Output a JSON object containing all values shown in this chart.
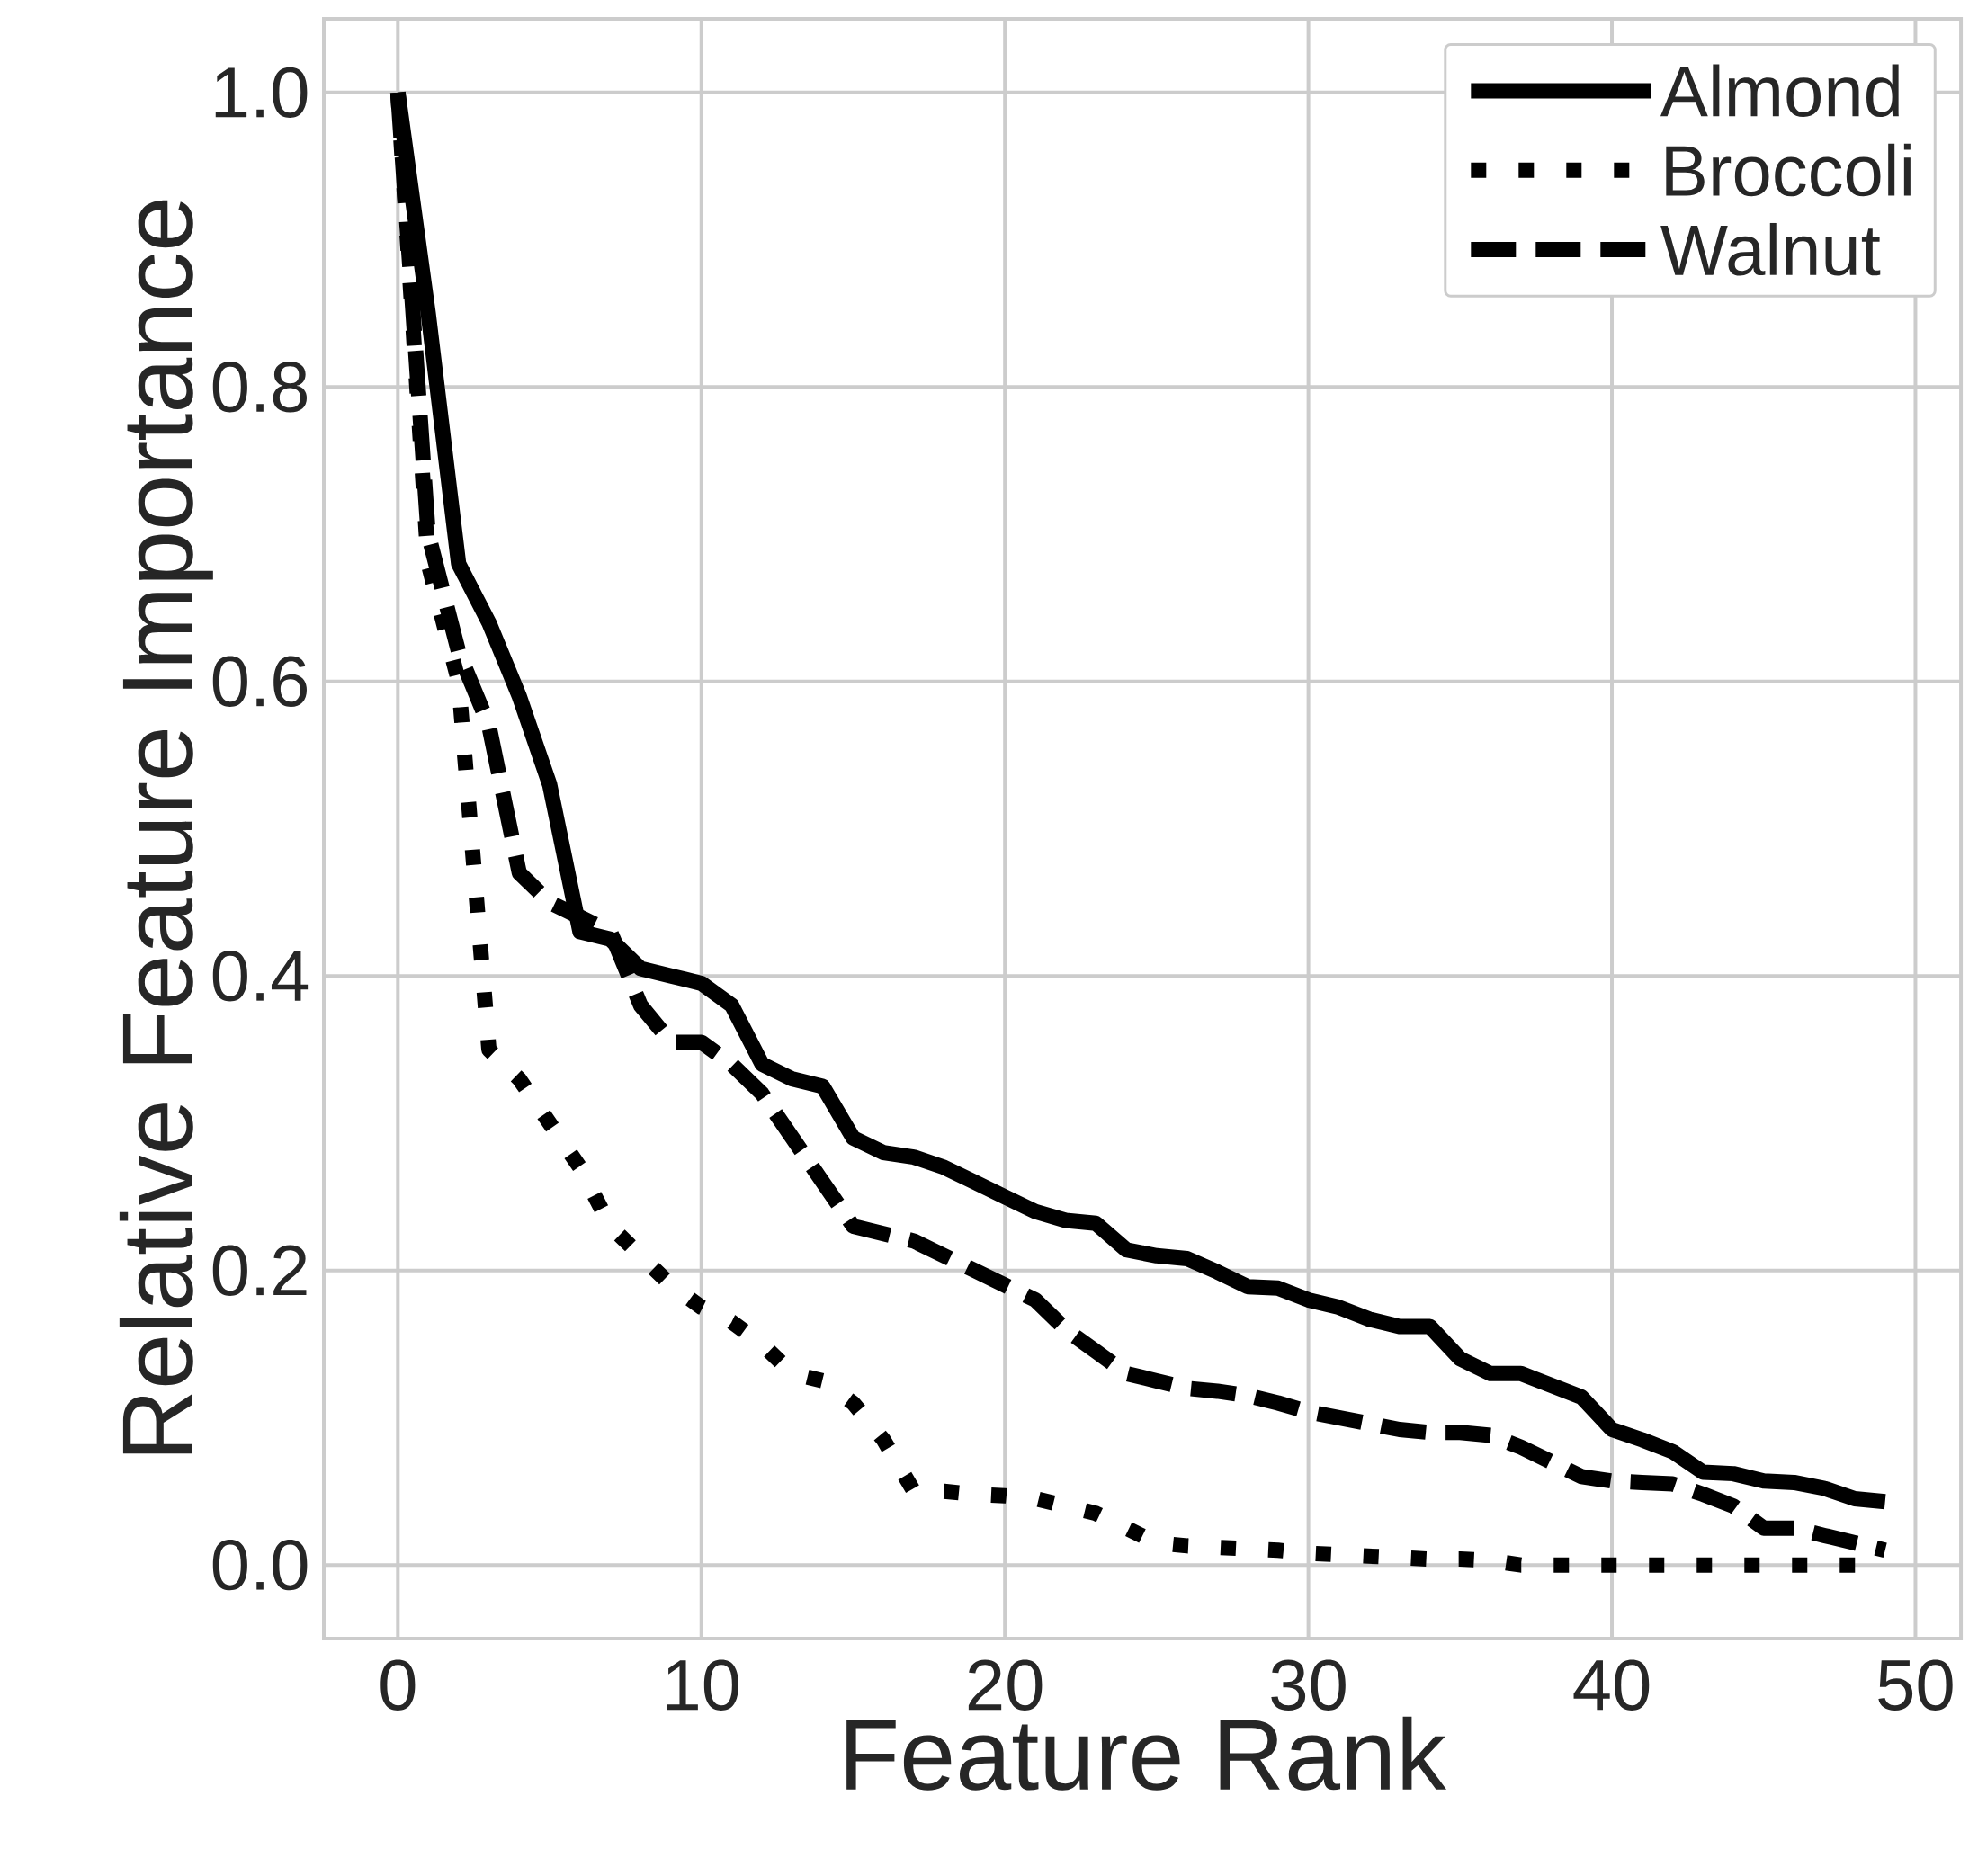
{
  "chart_data": {
    "type": "line",
    "xlabel": "Feature Rank",
    "ylabel": "Relative Feature Importance",
    "xlim": [
      -2.44,
      51.5
    ],
    "ylim": [
      -0.05,
      1.05
    ],
    "xticks": [
      0,
      10,
      20,
      30,
      40,
      50
    ],
    "yticks": [
      {
        "value": 0,
        "label": "0.0"
      },
      {
        "value": 0.2,
        "label": "0.2"
      },
      {
        "value": 0.4,
        "label": "0.4"
      },
      {
        "value": 0.6,
        "label": "0.6"
      },
      {
        "value": 0.8,
        "label": "0.8"
      },
      {
        "value": 1,
        "label": "1.0"
      }
    ],
    "grid": true,
    "legend": "top right",
    "marker": "none",
    "x": [
      0,
      1,
      2,
      3,
      4,
      5,
      6,
      7,
      8,
      9,
      10,
      11,
      12,
      13,
      14,
      15,
      16,
      17,
      18,
      19,
      20,
      21,
      22,
      23,
      24,
      25,
      26,
      27,
      28,
      29,
      30,
      31,
      32,
      33,
      34,
      35,
      36,
      37,
      38,
      39,
      40,
      41,
      42,
      43,
      44,
      45,
      46,
      47,
      48,
      49
    ],
    "series": [
      {
        "name": "Almond",
        "color": "#000000",
        "line_style": "solid",
        "values": [
          1.0,
          0.85,
          0.68,
          0.64,
          0.59,
          0.53,
          0.43,
          0.425,
          0.405,
          0.4,
          0.395,
          0.38,
          0.34,
          0.33,
          0.325,
          0.29,
          0.28,
          0.277,
          0.27,
          0.26,
          0.25,
          0.24,
          0.234,
          0.232,
          0.214,
          0.21,
          0.208,
          0.199,
          0.189,
          0.188,
          0.18,
          0.175,
          0.167,
          0.162,
          0.162,
          0.14,
          0.13,
          0.13,
          0.122,
          0.114,
          0.092,
          0.085,
          0.077,
          0.063,
          0.062,
          0.057,
          0.056,
          0.052,
          0.045,
          0.043
        ]
      },
      {
        "name": "Broccoli",
        "color": "#000000",
        "line_style": "dotted",
        "values": [
          1.0,
          0.68,
          0.6,
          0.35,
          0.33,
          0.3,
          0.27,
          0.23,
          0.21,
          0.19,
          0.175,
          0.165,
          0.15,
          0.13,
          0.125,
          0.11,
          0.085,
          0.05,
          0.05,
          0.048,
          0.047,
          0.045,
          0.04,
          0.035,
          0.025,
          0.015,
          0.013,
          0.012,
          0.011,
          0.01,
          0.008,
          0.007,
          0.006,
          0.005,
          0.004,
          0.004,
          0.003,
          0.0,
          0.0,
          0.0,
          0.0,
          0.0,
          0.0,
          0.0,
          0.0,
          0.0,
          0.0,
          0.0,
          0.0,
          0.0
        ]
      },
      {
        "name": "Walnut",
        "color": "#000000",
        "line_style": "dashed",
        "values": [
          1.0,
          0.7,
          0.62,
          0.57,
          0.47,
          0.45,
          0.44,
          0.43,
          0.38,
          0.355,
          0.355,
          0.34,
          0.32,
          0.29,
          0.26,
          0.23,
          0.225,
          0.22,
          0.21,
          0.2,
          0.19,
          0.18,
          0.16,
          0.145,
          0.13,
          0.125,
          0.12,
          0.118,
          0.115,
          0.11,
          0.104,
          0.1,
          0.096,
          0.092,
          0.09,
          0.09,
          0.088,
          0.08,
          0.07,
          0.06,
          0.057,
          0.056,
          0.055,
          0.048,
          0.04,
          0.025,
          0.025,
          0.02,
          0.015,
          0.01
        ]
      }
    ]
  }
}
